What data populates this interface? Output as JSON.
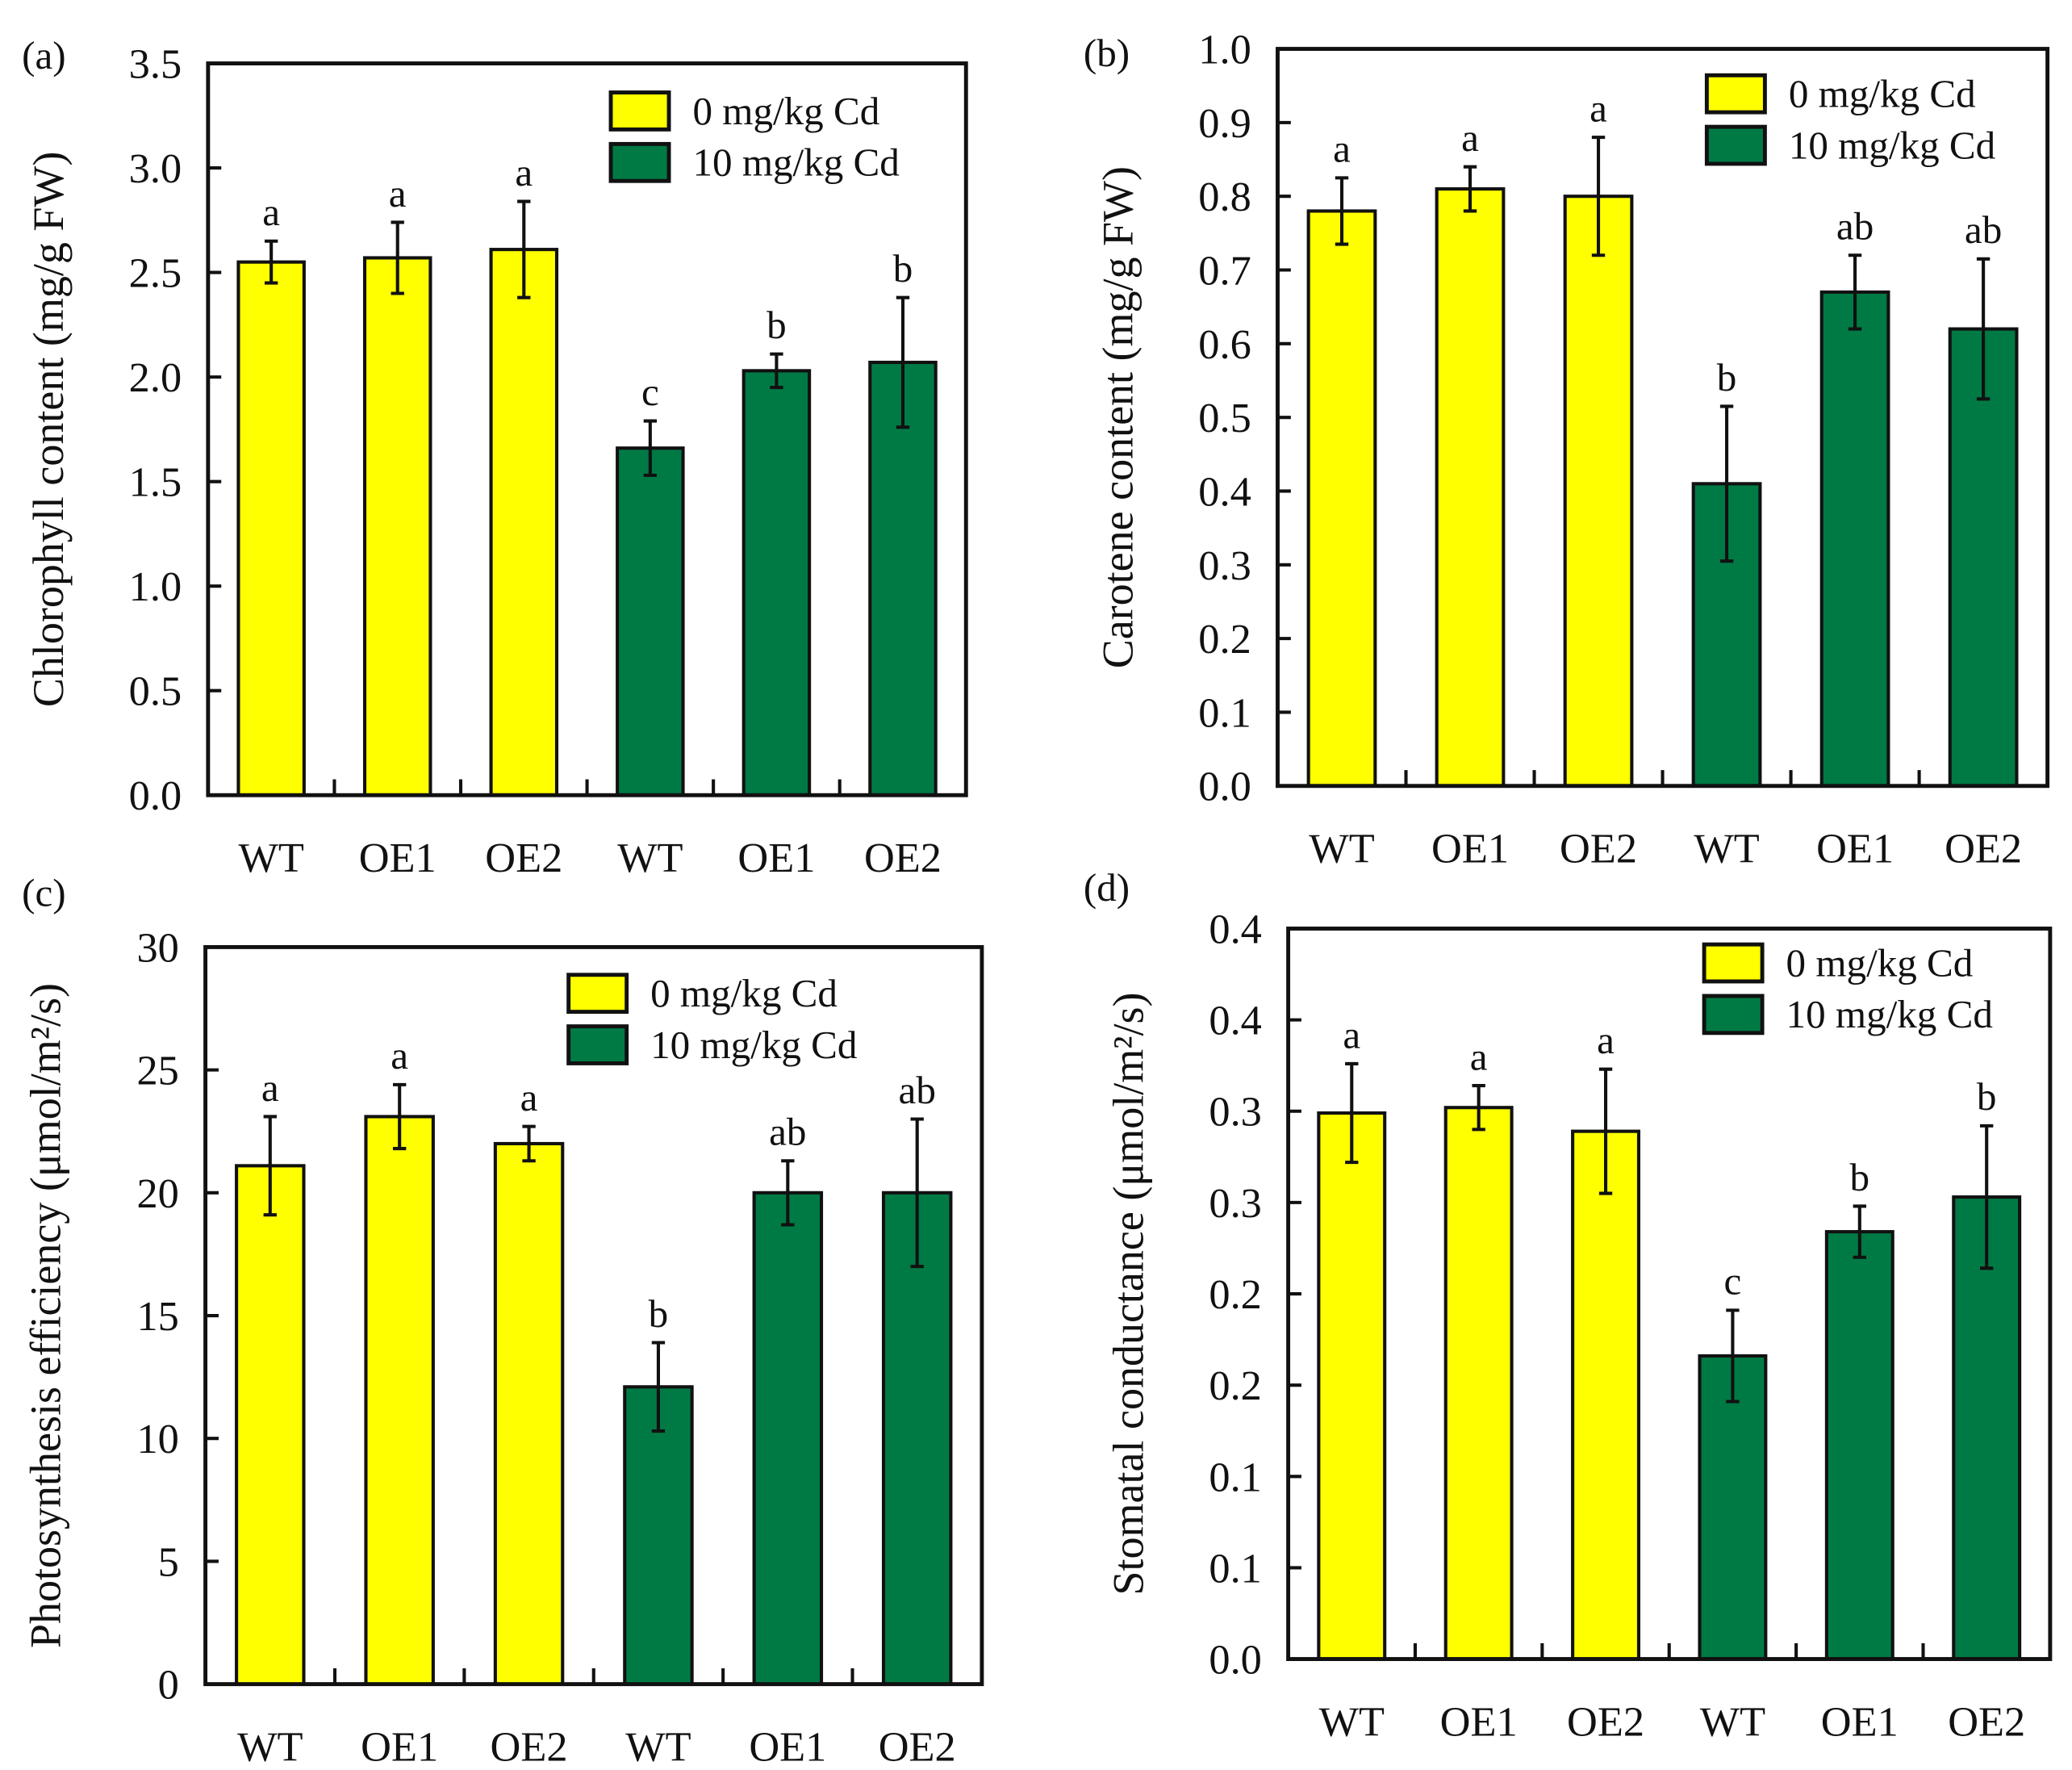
{
  "legend": {
    "items": [
      "0   mg/kg Cd",
      "10 mg/kg Cd"
    ],
    "colors": [
      "#ffff00",
      "#007a45"
    ]
  },
  "chart_data": [
    {
      "type": "bar",
      "panel": "(a)",
      "ylabel": "Chlorophyll content (mg/g FW)",
      "categories": [
        "WT",
        "OE1",
        "OE2",
        "WT",
        "OE1",
        "OE2"
      ],
      "groups": [
        0,
        0,
        0,
        1,
        1,
        1
      ],
      "values": [
        2.55,
        2.57,
        2.61,
        1.66,
        2.03,
        2.07
      ],
      "errors": [
        0.1,
        0.17,
        0.23,
        0.13,
        0.08,
        0.31
      ],
      "letters": [
        "a",
        "a",
        "a",
        "c",
        "b",
        "b"
      ],
      "ylim": [
        0,
        3.5
      ],
      "yticks": [
        0,
        0.5,
        1,
        1.5,
        2,
        2.5,
        3,
        3.5
      ],
      "yticklabels": [
        "0.0",
        "0.5",
        "1.0",
        "1.5",
        "2.0",
        "2.5",
        "3.0",
        "3.5"
      ],
      "legend_position": "top-right"
    },
    {
      "type": "bar",
      "panel": "(b)",
      "ylabel": "Carotene content (mg/g FW)",
      "categories": [
        "WT",
        "OE1",
        "OE2",
        "WT",
        "OE1",
        "OE2"
      ],
      "groups": [
        0,
        0,
        0,
        1,
        1,
        1
      ],
      "values": [
        0.78,
        0.81,
        0.8,
        0.41,
        0.67,
        0.62
      ],
      "errors": [
        0.045,
        0.03,
        0.08,
        0.105,
        0.05,
        0.095
      ],
      "letters": [
        "a",
        "a",
        "a",
        "b",
        "ab",
        "ab"
      ],
      "ylim": [
        0,
        1.0
      ],
      "yticks": [
        0,
        0.1,
        0.2,
        0.3,
        0.4,
        0.5,
        0.6,
        0.7,
        0.8,
        0.9,
        1.0
      ],
      "yticklabels": [
        "0.0",
        "0.1",
        "0.2",
        "0.3",
        "0.4",
        "0.5",
        "0.6",
        "0.7",
        "0.8",
        "0.9",
        "1.0"
      ],
      "legend_position": "top-right"
    },
    {
      "type": "bar",
      "panel": "(c)",
      "ylabel": "Photosynthesis efficiency (μmol/m²/s)",
      "categories": [
        "WT",
        "OE1",
        "OE2",
        "WT",
        "OE1",
        "OE2"
      ],
      "groups": [
        0,
        0,
        0,
        1,
        1,
        1
      ],
      "values": [
        21.1,
        23.1,
        22.0,
        12.1,
        20.0,
        20.0
      ],
      "errors": [
        2.0,
        1.3,
        0.7,
        1.8,
        1.3,
        3.0
      ],
      "letters": [
        "a",
        "a",
        "a",
        "b",
        "ab",
        "ab"
      ],
      "ylim": [
        0,
        30
      ],
      "yticks": [
        0,
        5,
        10,
        15,
        20,
        25,
        30
      ],
      "yticklabels": [
        "0",
        "5",
        "10",
        "15",
        "20",
        "25",
        "30"
      ],
      "legend_position": "top-right"
    },
    {
      "type": "bar",
      "panel": "(d)",
      "ylabel": "Stomatal conductance (μmol/m²/s)",
      "categories": [
        "WT",
        "OE1",
        "OE2",
        "WT",
        "OE1",
        "OE2"
      ],
      "groups": [
        0,
        0,
        0,
        1,
        1,
        1
      ],
      "values": [
        0.299,
        0.302,
        0.289,
        0.166,
        0.234,
        0.253
      ],
      "errors": [
        0.027,
        0.012,
        0.034,
        0.025,
        0.014,
        0.039
      ],
      "letters": [
        "a",
        "a",
        "a",
        "c",
        "b",
        "b"
      ],
      "ylim": [
        0,
        0.4
      ],
      "yticks": [
        0,
        0.05,
        0.1,
        0.15,
        0.2,
        0.25,
        0.3,
        0.35,
        0.4
      ],
      "yticklabels": [
        "0.0",
        "0.1",
        "0.1",
        "0.2",
        "0.2",
        "0.3",
        "0.3",
        "0.4",
        "0.4"
      ],
      "legend_position": "top-right"
    }
  ]
}
